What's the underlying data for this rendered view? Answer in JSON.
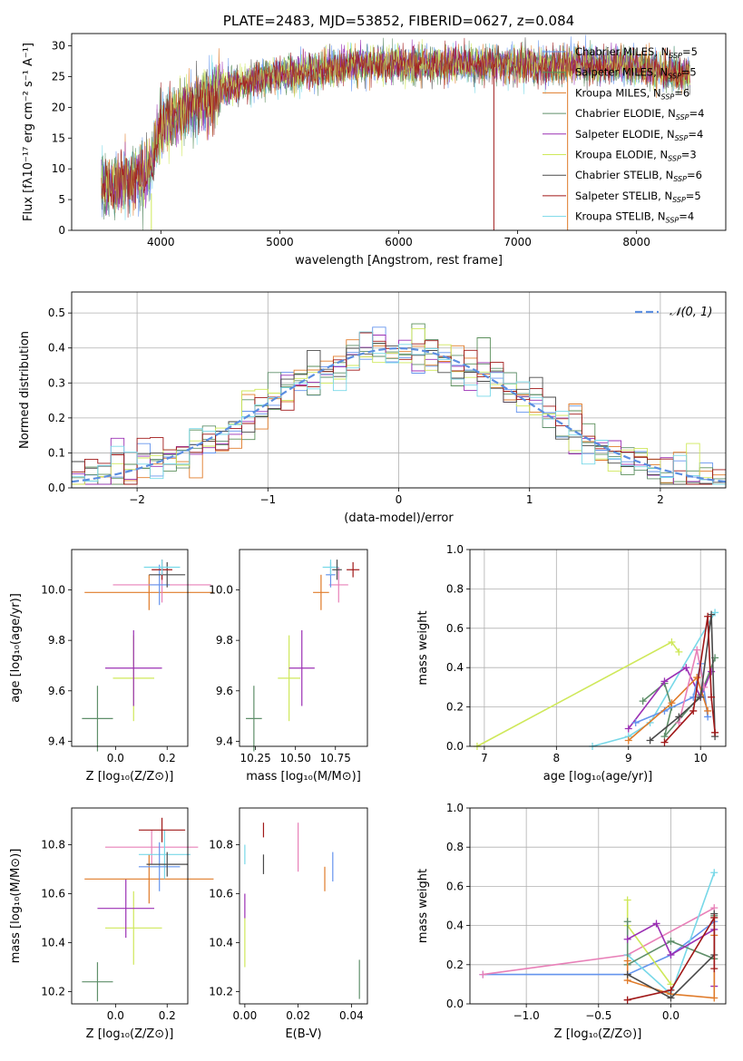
{
  "colors": {
    "chabrier_miles": "#6494ed",
    "salpeter_miles": "#5b8f5b",
    "kroupa_miles": "#e07b2a",
    "chabrier_elodie": "#5f8f6a",
    "salpeter_elodie": "#9b30b4",
    "kroupa_elodie": "#cfe85a",
    "chabrier_stelib": "#4a4a4a",
    "salpeter_stelib": "#a01818",
    "kroupa_stelib": "#78d8e8",
    "pink": "#e880b8",
    "gaussian": "#5b8ee0"
  },
  "chart_data": [
    {
      "id": "spectrum",
      "type": "line",
      "title": "PLATE=2483, MJD=53852, FIBERID=0627, z=0.084",
      "xlabel": "wavelength [Angstrom, rest frame]",
      "ylabel": "Flux [fλ10⁻¹⁷ erg cm⁻² s⁻¹ A⁻¹]",
      "xlim": [
        3250,
        8750
      ],
      "ylim": [
        0,
        32
      ],
      "xticks": [
        "4000",
        "5000",
        "6000",
        "7000",
        "8000"
      ],
      "yticks": [
        "0",
        "5",
        "10",
        "15",
        "20",
        "25",
        "30"
      ],
      "continuum": {
        "x": [
          3500,
          3600,
          3700,
          3800,
          3900,
          3950,
          4000,
          4100,
          4200,
          4300,
          4400,
          4500,
          4700,
          4900,
          5100,
          5300,
          5500,
          5700,
          5900,
          6100,
          6300,
          6500,
          6700,
          6900,
          7100,
          7300,
          7500,
          7700,
          7900,
          8100,
          8300,
          8450
        ],
        "y": [
          7,
          7.5,
          8,
          8.5,
          9,
          13,
          17,
          18.5,
          19.5,
          20.5,
          21.5,
          23,
          24,
          25,
          25.5,
          26,
          26.5,
          27,
          27,
          27,
          27,
          27,
          27,
          27,
          27,
          26.5,
          27,
          26.5,
          27,
          26.5,
          25.5,
          25.5
        ]
      },
      "legend": [
        {
          "name": "Chabrier MILES, N",
          "sub": "SSP",
          "suffix": "=5",
          "color_key": "chabrier_miles"
        },
        {
          "name": "Salpeter MILES, N",
          "sub": "SSP",
          "suffix": "=5",
          "color_key": "salpeter_miles"
        },
        {
          "name": "Kroupa MILES, N",
          "sub": "SSP",
          "suffix": "=6",
          "color_key": "kroupa_miles"
        },
        {
          "name": "Chabrier ELODIE, N",
          "sub": "SSP",
          "suffix": "=4",
          "color_key": "chabrier_elodie"
        },
        {
          "name": "Salpeter ELODIE, N",
          "sub": "SSP",
          "suffix": "=4",
          "color_key": "salpeter_elodie"
        },
        {
          "name": "Kroupa ELODIE, N",
          "sub": "SSP",
          "suffix": "=3",
          "color_key": "kroupa_elodie"
        },
        {
          "name": "Chabrier STELIB, N",
          "sub": "SSP",
          "suffix": "=6",
          "color_key": "chabrier_stelib"
        },
        {
          "name": "Salpeter STELIB, N",
          "sub": "SSP",
          "suffix": "=5",
          "color_key": "salpeter_stelib"
        },
        {
          "name": "Kroupa STELIB, N",
          "sub": "SSP",
          "suffix": "=4",
          "color_key": "kroupa_stelib"
        }
      ],
      "legend_loc": "upper right"
    },
    {
      "id": "residuals",
      "type": "histogram",
      "xlabel": "(data-model)/error",
      "ylabel": "Normed distribution",
      "xlim": [
        -2.5,
        2.5
      ],
      "ylim": [
        0,
        0.56
      ],
      "xticks": [
        "−2",
        "−1",
        "0",
        "1",
        "2"
      ],
      "yticks": [
        "0.0",
        "0.1",
        "0.2",
        "0.3",
        "0.4",
        "0.5"
      ],
      "grid": true,
      "legend": "𝒩(0, 1)",
      "legend_loc": "upper right",
      "bin_width": 0.1
    },
    {
      "id": "age_vs_Z",
      "type": "errorbar",
      "xlabel": "Z [log₁₀(Z/Z⊙)]",
      "ylabel": "age  [log₁₀(age/yr)]",
      "xlim": [
        -0.17,
        0.28
      ],
      "ylim": [
        9.38,
        10.16
      ],
      "xticks": [
        "0.0",
        "0.2"
      ],
      "yticks": [
        "9.4",
        "9.6",
        "9.8",
        "10.0"
      ],
      "points": [
        {
          "x": -0.07,
          "xerr": 0.06,
          "y": 9.49,
          "yerr": 0.13,
          "c": "chabrier_elodie"
        },
        {
          "x": 0.07,
          "xerr": 0.08,
          "y": 9.65,
          "yerr": 0.17,
          "c": "kroupa_elodie"
        },
        {
          "x": 0.07,
          "xerr": 0.11,
          "y": 9.69,
          "yerr": 0.15,
          "c": "salpeter_elodie"
        },
        {
          "x": 0.13,
          "xerr": 0.25,
          "y": 9.99,
          "yerr": 0.07,
          "c": "kroupa_miles"
        },
        {
          "x": 0.18,
          "xerr": 0.19,
          "y": 10.02,
          "yerr": 0.07,
          "c": "pink"
        },
        {
          "x": 0.17,
          "xerr": 0.04,
          "y": 10.02,
          "yerr": 0.08,
          "c": "chabrier_miles"
        },
        {
          "x": 0.2,
          "xerr": 0.07,
          "y": 10.06,
          "yerr": 0.05,
          "c": "chabrier_stelib"
        },
        {
          "x": 0.18,
          "xerr": 0.04,
          "y": 10.08,
          "yerr": 0.04,
          "c": "salpeter_stelib"
        },
        {
          "x": 0.18,
          "xerr": 0.07,
          "y": 10.09,
          "yerr": 0.03,
          "c": "kroupa_stelib"
        }
      ]
    },
    {
      "id": "age_vs_mass",
      "type": "errorbar",
      "xlabel": "mass [log₁₀(M/M⊙)]",
      "ylabel": "",
      "xlim": [
        10.15,
        10.95
      ],
      "ylim": [
        9.38,
        10.16
      ],
      "xticks": [
        "10.25",
        "10.50",
        "10.75"
      ],
      "yticks": [
        "9.4",
        "9.6",
        "9.8",
        "10.0"
      ],
      "points": [
        {
          "x": 10.24,
          "xerr": 0.05,
          "y": 9.49,
          "yerr": 0.13,
          "c": "chabrier_elodie"
        },
        {
          "x": 10.46,
          "xerr": 0.07,
          "y": 9.65,
          "yerr": 0.17,
          "c": "kroupa_elodie"
        },
        {
          "x": 10.54,
          "xerr": 0.08,
          "y": 9.69,
          "yerr": 0.15,
          "c": "salpeter_elodie"
        },
        {
          "x": 10.66,
          "xerr": 0.05,
          "y": 9.99,
          "yerr": 0.07,
          "c": "kroupa_miles"
        },
        {
          "x": 10.77,
          "xerr": 0.06,
          "y": 10.02,
          "yerr": 0.07,
          "c": "pink"
        },
        {
          "x": 10.72,
          "xerr": 0.03,
          "y": 10.06,
          "yerr": 0.05,
          "c": "chabrier_miles"
        },
        {
          "x": 10.72,
          "xerr": 0.05,
          "y": 10.09,
          "yerr": 0.03,
          "c": "kroupa_stelib"
        },
        {
          "x": 10.76,
          "xerr": 0.03,
          "y": 10.08,
          "yerr": 0.04,
          "c": "chabrier_stelib"
        },
        {
          "x": 10.86,
          "xerr": 0.04,
          "y": 10.08,
          "yerr": 0.03,
          "c": "salpeter_stelib"
        }
      ]
    },
    {
      "id": "weight_vs_age",
      "type": "line",
      "xlabel": "age  [log₁₀(age/yr)]",
      "ylabel": "mass weight",
      "xlim": [
        6.8,
        10.35
      ],
      "ylim": [
        0,
        1
      ],
      "xticks": [
        "7",
        "8",
        "9",
        "10"
      ],
      "yticks": [
        "0.0",
        "0.2",
        "0.4",
        "0.6",
        "0.8",
        "1.0"
      ],
      "grid": true,
      "series": [
        {
          "c": "kroupa_elodie",
          "x": [
            6.9,
            9.6,
            9.7
          ],
          "y": [
            0.0,
            0.53,
            0.48
          ]
        },
        {
          "c": "kroupa_stelib",
          "x": [
            8.5,
            9.0,
            9.3,
            10.2
          ],
          "y": [
            0.0,
            0.05,
            0.12,
            0.68
          ]
        },
        {
          "c": "chabrier_elodie",
          "x": [
            9.2,
            9.5,
            9.6,
            9.5,
            10.0,
            10.2
          ],
          "y": [
            0.23,
            0.32,
            0.2,
            0.05,
            0.26,
            0.45
          ]
        },
        {
          "c": "salpeter_elodie",
          "x": [
            9.0,
            9.5,
            9.8,
            10.0,
            10.15
          ],
          "y": [
            0.09,
            0.33,
            0.4,
            0.25,
            0.38
          ]
        },
        {
          "c": "chabrier_miles",
          "x": [
            9.1,
            9.5,
            9.9,
            10.0,
            10.1
          ],
          "y": [
            0.12,
            0.18,
            0.25,
            0.42,
            0.15
          ]
        },
        {
          "c": "kroupa_miles",
          "x": [
            9.0,
            9.6,
            9.95,
            10.1
          ],
          "y": [
            0.03,
            0.22,
            0.35,
            0.18
          ]
        },
        {
          "c": "pink",
          "x": [
            9.7,
            9.95,
            10.05
          ],
          "y": [
            0.12,
            0.49,
            0.3
          ]
        },
        {
          "c": "chabrier_stelib",
          "x": [
            9.3,
            9.7,
            10.0,
            10.15,
            10.2
          ],
          "y": [
            0.03,
            0.15,
            0.25,
            0.67,
            0.05
          ]
        },
        {
          "c": "salpeter_stelib",
          "x": [
            9.5,
            9.9,
            10.1,
            10.15,
            10.2
          ],
          "y": [
            0.02,
            0.18,
            0.66,
            0.25,
            0.07
          ]
        }
      ]
    },
    {
      "id": "mass_vs_Z",
      "type": "errorbar",
      "xlabel": "Z [log₁₀(Z/Z⊙)]",
      "ylabel": "mass [log₁₀(M/M⊙)]",
      "xlim": [
        -0.17,
        0.28
      ],
      "ylim": [
        10.15,
        10.95
      ],
      "xticks": [
        "0.0",
        "0.2"
      ],
      "yticks": [
        "10.2",
        "10.4",
        "10.6",
        "10.8"
      ],
      "points": [
        {
          "x": -0.07,
          "xerr": 0.06,
          "y": 10.24,
          "yerr": 0.08,
          "c": "chabrier_elodie"
        },
        {
          "x": 0.07,
          "xerr": 0.11,
          "y": 10.46,
          "yerr": 0.15,
          "c": "kroupa_elodie"
        },
        {
          "x": 0.04,
          "xerr": 0.11,
          "y": 10.54,
          "yerr": 0.12,
          "c": "salpeter_elodie"
        },
        {
          "x": 0.13,
          "xerr": 0.25,
          "y": 10.66,
          "yerr": 0.1,
          "c": "kroupa_miles"
        },
        {
          "x": 0.14,
          "xerr": 0.18,
          "y": 10.79,
          "yerr": 0.07,
          "c": "pink"
        },
        {
          "x": 0.19,
          "xerr": 0.1,
          "y": 10.76,
          "yerr": 0.1,
          "c": "kroupa_stelib"
        },
        {
          "x": 0.17,
          "xerr": 0.08,
          "y": 10.71,
          "yerr": 0.1,
          "c": "chabrier_miles"
        },
        {
          "x": 0.2,
          "xerr": 0.08,
          "y": 10.72,
          "yerr": 0.05,
          "c": "chabrier_stelib"
        },
        {
          "x": 0.18,
          "xerr": 0.09,
          "y": 10.86,
          "yerr": 0.05,
          "c": "salpeter_stelib"
        }
      ]
    },
    {
      "id": "mass_vs_ebv",
      "type": "errorbar",
      "xlabel": "E(B-V)",
      "ylabel": "",
      "xlim": [
        -0.002,
        0.046
      ],
      "ylim": [
        10.15,
        10.95
      ],
      "xticks": [
        "0.00",
        "0.02",
        "0.04"
      ],
      "yticks": [
        "10.2",
        "10.4",
        "10.6",
        "10.8"
      ],
      "points": [
        {
          "x": 0.0,
          "xerr": 0.0,
          "y": 10.4,
          "yerr": 0.1,
          "c": "kroupa_elodie"
        },
        {
          "x": 0.0,
          "xerr": 0.0,
          "y": 10.55,
          "yerr": 0.05,
          "c": "salpeter_elodie"
        },
        {
          "x": 0.0,
          "xerr": 0.0,
          "y": 10.76,
          "yerr": 0.04,
          "c": "kroupa_stelib"
        },
        {
          "x": 0.007,
          "xerr": 0.0,
          "y": 10.86,
          "yerr": 0.03,
          "c": "salpeter_stelib"
        },
        {
          "x": 0.007,
          "xerr": 0.0,
          "y": 10.72,
          "yerr": 0.04,
          "c": "chabrier_stelib"
        },
        {
          "x": 0.02,
          "xerr": 0.0,
          "y": 10.79,
          "yerr": 0.1,
          "c": "pink"
        },
        {
          "x": 0.03,
          "xerr": 0.0,
          "y": 10.66,
          "yerr": 0.05,
          "c": "kroupa_miles"
        },
        {
          "x": 0.033,
          "xerr": 0.0,
          "y": 10.71,
          "yerr": 0.06,
          "c": "chabrier_miles"
        },
        {
          "x": 0.043,
          "xerr": 0.0,
          "y": 10.25,
          "yerr": 0.08,
          "c": "chabrier_elodie"
        }
      ]
    },
    {
      "id": "weight_vs_Z",
      "type": "line",
      "xlabel": "Z [log₁₀(Z/Z⊙)]",
      "ylabel": "mass weight",
      "xlim": [
        -1.39,
        0.38
      ],
      "ylim": [
        0,
        1
      ],
      "xticks": [
        "−1.0",
        "−0.5",
        "0.0"
      ],
      "yticks": [
        "0.0",
        "0.2",
        "0.4",
        "0.6",
        "0.8",
        "1.0"
      ],
      "grid": true,
      "series": [
        {
          "c": "chabrier_miles",
          "x": [
            -1.3,
            -0.3,
            0.0,
            0.3
          ],
          "y": [
            0.15,
            0.15,
            0.25,
            0.42
          ]
        },
        {
          "c": "pink",
          "x": [
            -1.3,
            -0.3,
            0.3
          ],
          "y": [
            0.15,
            0.25,
            0.49
          ]
        },
        {
          "c": "kroupa_elodie",
          "x": [
            -0.3,
            -0.3,
            0.0
          ],
          "y": [
            0.53,
            0.4,
            0.1
          ]
        },
        {
          "c": "kroupa_stelib",
          "x": [
            -0.3,
            0.0,
            0.3
          ],
          "y": [
            0.25,
            0.05,
            0.67
          ]
        },
        {
          "c": "chabrier_elodie",
          "x": [
            -0.3,
            -0.3,
            0.0,
            0.3,
            0.3
          ],
          "y": [
            0.42,
            0.2,
            0.32,
            0.23,
            0.45
          ]
        },
        {
          "c": "salpeter_elodie",
          "x": [
            -0.3,
            -0.1,
            0.0,
            0.3,
            0.3
          ],
          "y": [
            0.33,
            0.41,
            0.25,
            0.38,
            0.09
          ]
        },
        {
          "c": "kroupa_miles",
          "x": [
            -0.3,
            -0.3,
            0.0,
            0.3,
            0.3
          ],
          "y": [
            0.22,
            0.12,
            0.05,
            0.03,
            0.35
          ]
        },
        {
          "c": "chabrier_stelib",
          "x": [
            -0.3,
            0.0,
            0.3,
            0.3
          ],
          "y": [
            0.15,
            0.03,
            0.25,
            0.46
          ]
        },
        {
          "c": "salpeter_stelib",
          "x": [
            -0.3,
            0.0,
            0.3,
            0.3
          ],
          "y": [
            0.02,
            0.07,
            0.44,
            0.18
          ]
        }
      ]
    }
  ]
}
